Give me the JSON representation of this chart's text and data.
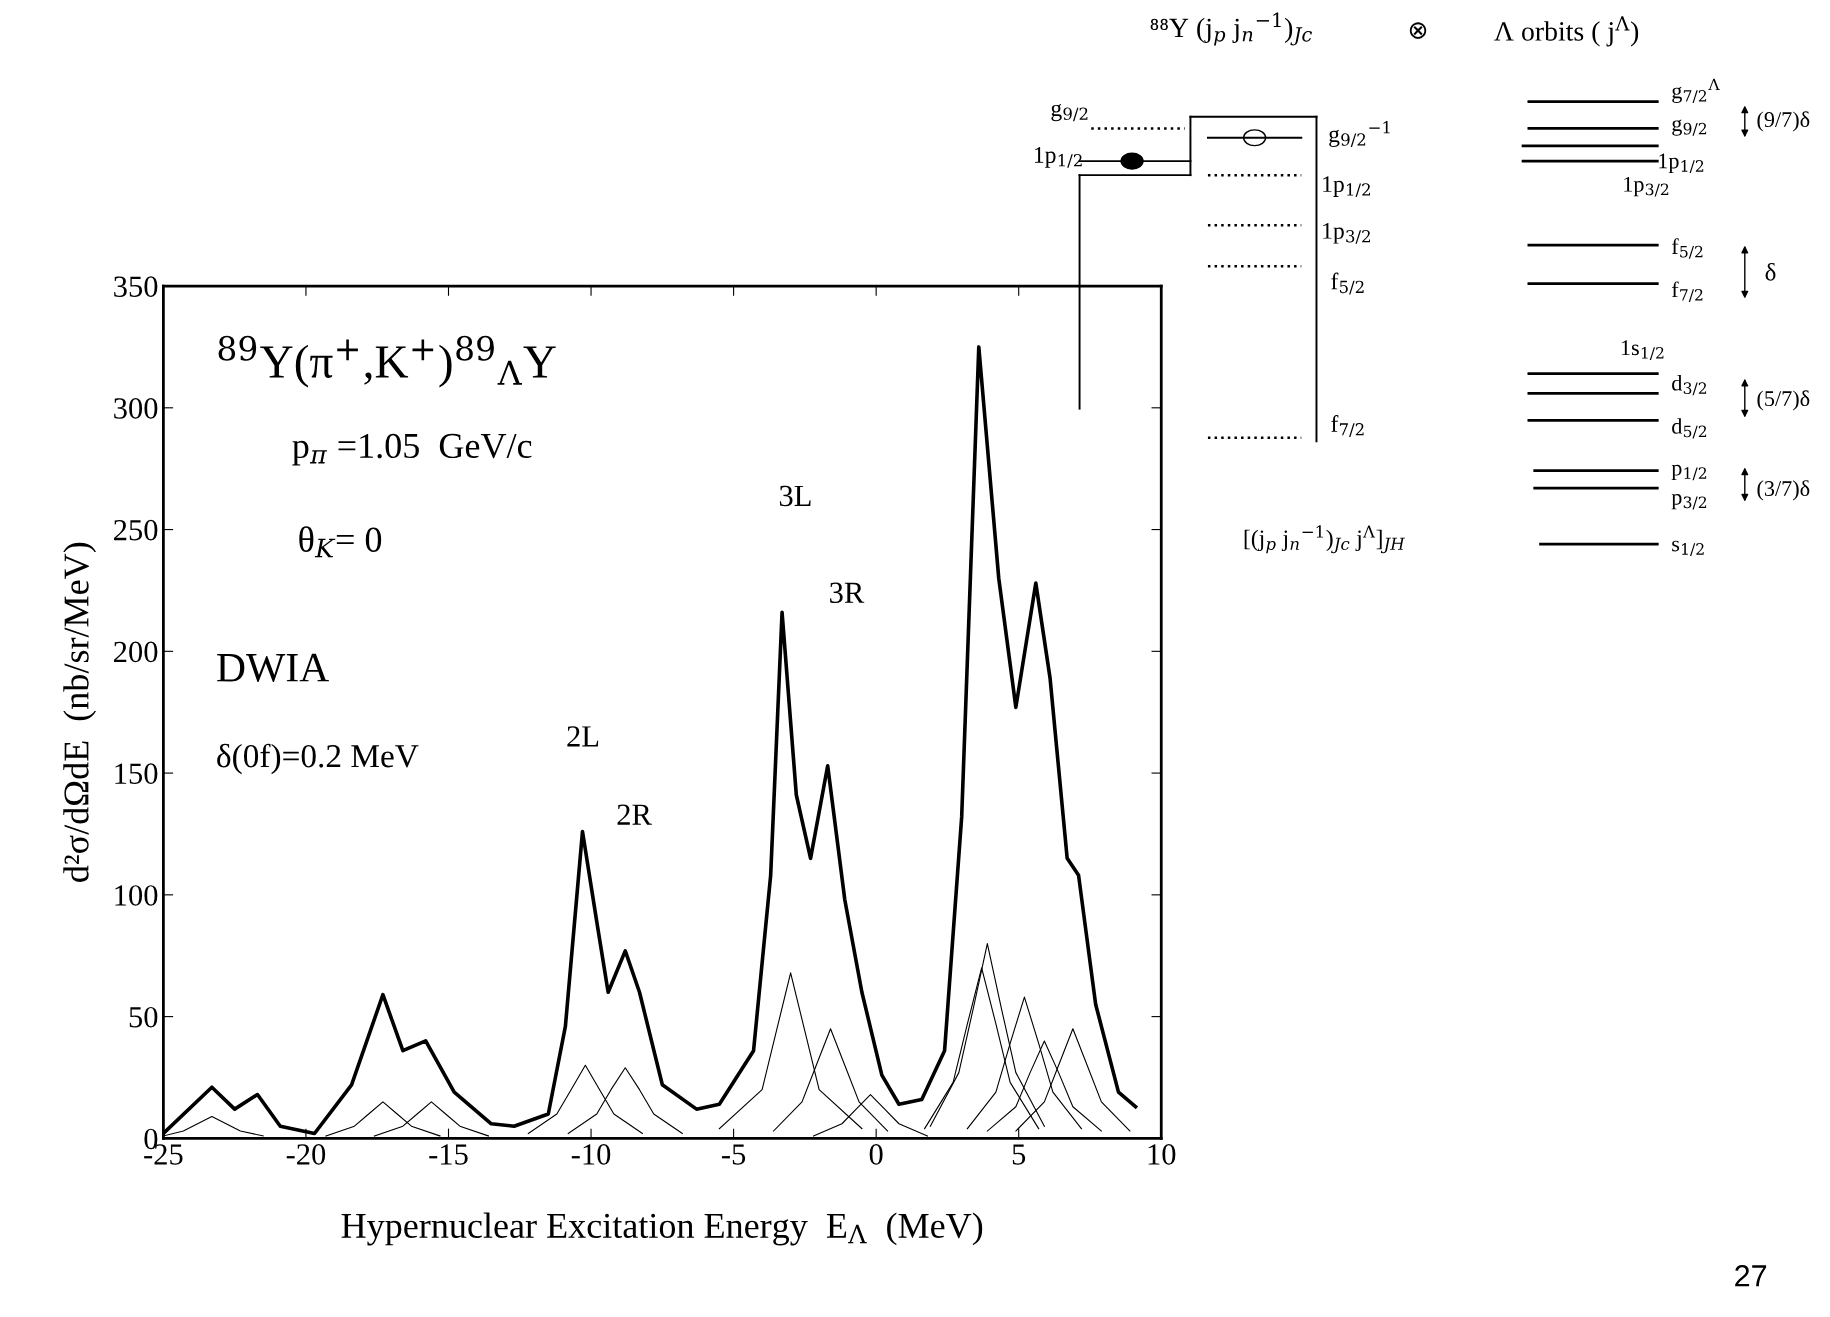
{
  "chart_data": {
    "type": "line",
    "xlabel": "Hypernuclear Excitation Energy  E$_{Λ}$  (MeV)",
    "ylabel": "d²σ/dΩdE  (nb/sr/MeV)",
    "xlim": [
      -25,
      10
    ],
    "xticks": [
      -25,
      -20,
      -15,
      -10,
      -5,
      0,
      5,
      10
    ],
    "ylim": [
      0,
      350
    ],
    "yticks": [
      0,
      50,
      100,
      150,
      200,
      250,
      300,
      350
    ],
    "grid": false,
    "legend": false,
    "marker": "none",
    "line_style": "solid",
    "series": [
      {
        "color": "#000000",
        "x": [
          -25,
          -23.3,
          -22.5,
          -21.7,
          -20.9,
          -19.7,
          -18.4,
          -17.3,
          -16.6,
          -15.8,
          -14.8,
          -13.5,
          -12.7,
          -11.5,
          -10.9,
          -10.3,
          -9.8,
          -9.4,
          -8.8,
          -8.3,
          -7.5,
          -6.3,
          -5.5,
          -4.3,
          -3.7,
          -3.3,
          -2.8,
          -2.3,
          -1.7,
          -1.1,
          -0.5,
          0.2,
          0.8,
          1.6,
          2.4,
          3.0,
          3.6,
          4.3,
          4.9,
          5.6,
          6.1,
          6.7,
          7.1,
          7.7,
          8.5,
          9.1
        ],
        "values": [
          2,
          21,
          12,
          18,
          5,
          2,
          22,
          59,
          36,
          40,
          19,
          6,
          5,
          10,
          46,
          126,
          89,
          60,
          77,
          60,
          22,
          12,
          14,
          36,
          108,
          216,
          141,
          115,
          153,
          98,
          60,
          26,
          14,
          16,
          36,
          132,
          325,
          230,
          177,
          228,
          189,
          115,
          108,
          55,
          19,
          13
        ]
      },
      {
        "color": "#000000",
        "x": [
          -25,
          -24.3,
          -23.8,
          -23.3,
          -22.8,
          -22.3,
          -21.5
        ],
        "values": [
          1,
          3,
          6,
          9,
          6,
          3,
          1
        ]
      },
      {
        "color": "#000000",
        "x": [
          -19.3,
          -18.3,
          -17.8,
          -17.3,
          -16.8,
          -16.3,
          -15.3
        ],
        "values": [
          1,
          5,
          10,
          15,
          10,
          5,
          1
        ]
      },
      {
        "color": "#000000",
        "x": [
          -17.6,
          -16.6,
          -16.1,
          -15.6,
          -15.1,
          -14.6,
          -13.6
        ],
        "values": [
          1,
          5,
          10,
          15,
          10,
          5,
          1
        ]
      },
      {
        "color": "#000000",
        "x": [
          -12.2,
          -11.2,
          -10.7,
          -10.2,
          -9.7,
          -9.2,
          -8.2
        ],
        "values": [
          2,
          10,
          20,
          30,
          20,
          10,
          2
        ]
      },
      {
        "color": "#000000",
        "x": [
          -10.8,
          -9.8,
          -9.3,
          -8.8,
          -8.3,
          -7.8,
          -6.8
        ],
        "values": [
          2,
          10,
          20,
          29,
          20,
          10,
          2
        ]
      },
      {
        "color": "#000000",
        "x": [
          -5.5,
          -4,
          -3.5,
          -3,
          -2.5,
          -2,
          -0.5
        ],
        "values": [
          4,
          20,
          44,
          68,
          44,
          20,
          4
        ]
      },
      {
        "color": "#000000",
        "x": [
          -3.6,
          -2.6,
          -2.1,
          -1.6,
          -1.1,
          -0.6,
          0.4
        ],
        "values": [
          3,
          15,
          30,
          45,
          30,
          15,
          3
        ]
      },
      {
        "color": "#000000",
        "x": [
          -2.2,
          -1.2,
          -0.7,
          -0.2,
          0.3,
          0.8,
          1.8
        ],
        "values": [
          1,
          6,
          12,
          18,
          12,
          6,
          1
        ]
      },
      {
        "color": "#000000",
        "x": [
          1.7,
          2.7,
          3.2,
          3.7,
          4.2,
          4.7,
          5.7
        ],
        "values": [
          4,
          23,
          47,
          70,
          47,
          23,
          4
        ]
      },
      {
        "color": "#000000",
        "x": [
          1.9,
          2.9,
          3.4,
          3.9,
          4.4,
          4.9,
          5.9
        ],
        "values": [
          5,
          27,
          53,
          80,
          53,
          27,
          5
        ]
      },
      {
        "color": "#000000",
        "x": [
          3.2,
          4.2,
          4.7,
          5.2,
          5.7,
          6.2,
          7.2
        ],
        "values": [
          4,
          19,
          39,
          58,
          39,
          19,
          4
        ]
      },
      {
        "color": "#000000",
        "x": [
          3.9,
          4.9,
          5.4,
          5.9,
          6.4,
          6.9,
          7.9
        ],
        "values": [
          3,
          13,
          27,
          40,
          27,
          13,
          3
        ]
      },
      {
        "color": "#000000",
        "x": [
          4.9,
          5.9,
          6.4,
          6.9,
          7.4,
          7.9,
          8.9
        ],
        "values": [
          3,
          15,
          30,
          45,
          30,
          15,
          3
        ]
      }
    ],
    "annotations": [
      "$^{89}$Y(π$^{+}$,K$^{+}$)$^{89}$$_{Λ}$Y",
      "p$_{π}$ =1.05  GeV/c",
      "θ$_{K}$= 0",
      "DWIA",
      "δ(0f)=0.2 MeV",
      "2L",
      "2R",
      "3L",
      "3R",
      "⁸⁸Y (j$_{p}$ j$_{n}$$^{−1}$)$_{Jc}$",
      "⊗",
      "Λ orbits ( j$^{Λ}$)",
      "g$_{9/2}$",
      "1p$_{1/2}$",
      "g$_{9/2}$$^{−1}$",
      "1p$_{1/2}$",
      "1p$_{3/2}$",
      "f$_{5/2}$",
      "f$_{7/2}$",
      "[(j$_{p}$ j$_{n}$$^{−1}$)$_{Jc}$ j$^{Λ}$]$_{JH}$",
      "g$_{7/2}$$^{Λ}$",
      "g$_{9/2}$",
      "1p$_{1/2}$",
      "1p$_{3/2}$",
      "f$_{5/2}$",
      "f$_{7/2}$",
      "1s$_{1/2}$",
      "d$_{3/2}$",
      "d$_{5/2}$",
      "p$_{1/2}$",
      "p$_{3/2}$",
      "s$_{1/2}$",
      "(9/7)δ",
      "δ",
      "(5/7)δ",
      "(3/7)δ",
      "27"
    ]
  }
}
